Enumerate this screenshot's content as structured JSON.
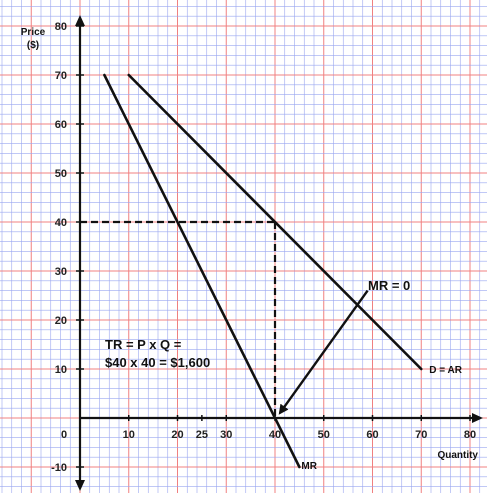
{
  "chart_data": {
    "type": "line",
    "title": "",
    "ylabel": "Price ($)",
    "ylabel_lines": [
      "Price",
      "($)"
    ],
    "xlabel": "Quantity",
    "xlim": [
      0,
      80
    ],
    "ylim": [
      -10,
      80
    ],
    "x_ticks": [
      {
        "value": 10,
        "label": "10"
      },
      {
        "value": 20,
        "label": "20"
      },
      {
        "value": 25,
        "label": "25"
      },
      {
        "value": 30,
        "label": "30"
      },
      {
        "value": 40,
        "label": "40"
      },
      {
        "value": 50,
        "label": "50"
      },
      {
        "value": 60,
        "label": "60"
      },
      {
        "value": 70,
        "label": "70"
      },
      {
        "value": 80,
        "label": "80"
      }
    ],
    "y_ticks": [
      {
        "value": 80,
        "label": "80"
      },
      {
        "value": 70,
        "label": "70"
      },
      {
        "value": 60,
        "label": "60"
      },
      {
        "value": 50,
        "label": "50"
      },
      {
        "value": 40,
        "label": "40"
      },
      {
        "value": 30,
        "label": "30"
      },
      {
        "value": 20,
        "label": "20"
      },
      {
        "value": 10,
        "label": "10"
      },
      {
        "value": -10,
        "label": "-10"
      }
    ],
    "origin_label": "0",
    "grid": true,
    "grid_colors": {
      "minor": "#9aa7f0",
      "major": "#f08080"
    },
    "series": [
      {
        "name": "D = AR",
        "color": "#111111",
        "points": [
          [
            10,
            70
          ],
          [
            70,
            10
          ]
        ]
      },
      {
        "name": "MR",
        "color": "#111111",
        "points": [
          [
            5,
            70
          ],
          [
            45,
            -10
          ]
        ]
      }
    ],
    "guides": [
      {
        "points": [
          [
            0,
            40
          ],
          [
            40,
            40
          ]
        ],
        "style": "dashed"
      },
      {
        "points": [
          [
            40,
            40
          ],
          [
            40,
            0
          ]
        ],
        "style": "dashed"
      }
    ],
    "annotations": {
      "tr_line1": "TR = P x Q =",
      "tr_line2": "$40 x 40 = $1,600",
      "mr_zero": "MR = 0"
    },
    "arrow": {
      "from": [
        59,
        26
      ],
      "to": [
        41,
        1
      ]
    }
  }
}
